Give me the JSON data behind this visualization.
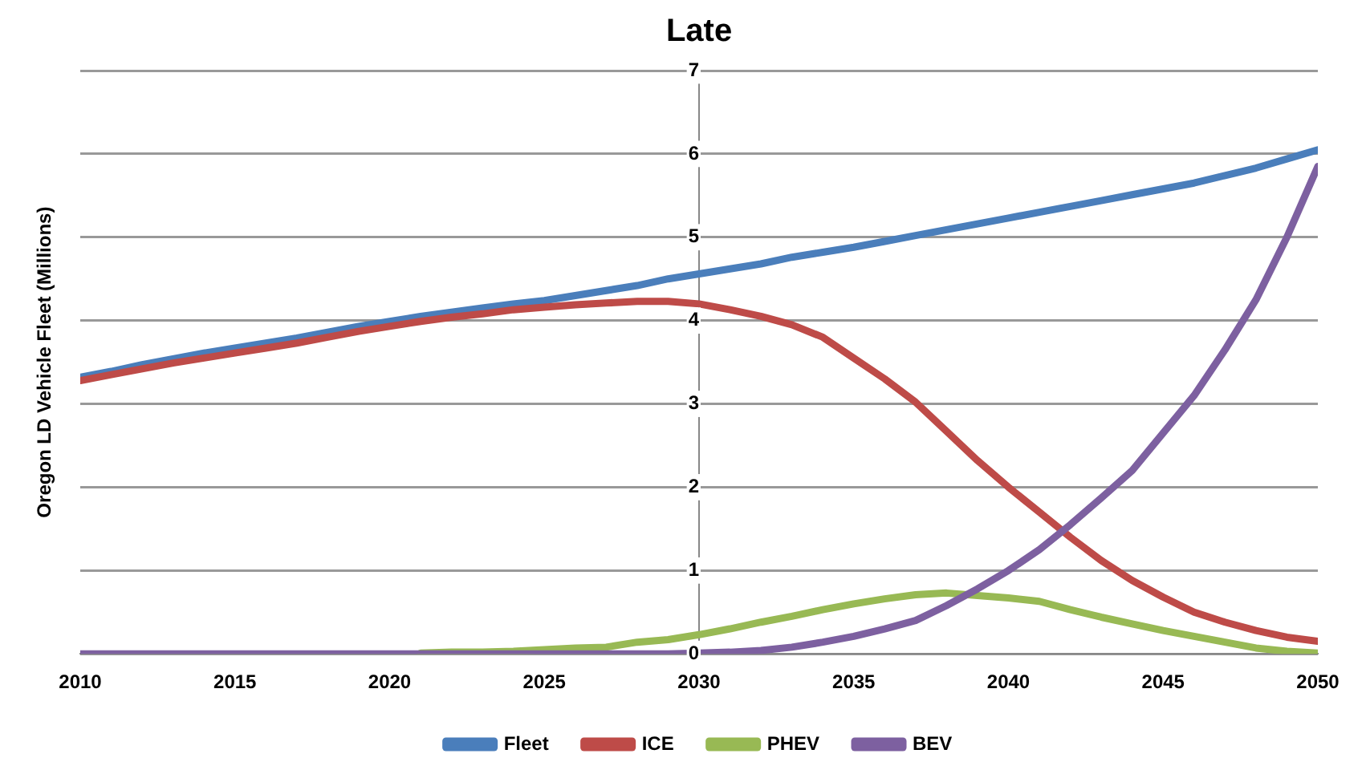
{
  "chart_data": {
    "type": "line",
    "title": "Late",
    "ylabel": "Oregon LD Vehicle Fleet (Millions)",
    "x": [
      2010,
      2011,
      2012,
      2013,
      2014,
      2015,
      2016,
      2017,
      2018,
      2019,
      2020,
      2021,
      2022,
      2023,
      2024,
      2025,
      2026,
      2027,
      2028,
      2029,
      2030,
      2031,
      2032,
      2033,
      2034,
      2035,
      2036,
      2037,
      2038,
      2039,
      2040,
      2041,
      2042,
      2043,
      2044,
      2045,
      2046,
      2047,
      2048,
      2049,
      2050
    ],
    "xlim": [
      2010,
      2050
    ],
    "xticks": [
      2010,
      2015,
      2020,
      2025,
      2030,
      2035,
      2040,
      2045,
      2050
    ],
    "ylim": [
      0,
      7
    ],
    "yticks": [
      0,
      1,
      2,
      3,
      4,
      5,
      6,
      7
    ],
    "grid": "y",
    "legend": "bottom",
    "marker": "none",
    "line_style": "solid",
    "series": [
      {
        "name": "Fleet",
        "color": "#4a7ebb",
        "values": [
          3.32,
          3.39,
          3.47,
          3.54,
          3.61,
          3.67,
          3.73,
          3.79,
          3.86,
          3.93,
          3.99,
          4.05,
          4.1,
          4.15,
          4.2,
          4.24,
          4.3,
          4.36,
          4.42,
          4.5,
          4.56,
          4.62,
          4.68,
          4.76,
          4.82,
          4.88,
          4.95,
          5.02,
          5.09,
          5.16,
          5.23,
          5.3,
          5.37,
          5.44,
          5.51,
          5.58,
          5.65,
          5.74,
          5.83,
          5.94,
          6.05
        ]
      },
      {
        "name": "ICE",
        "color": "#be4b48",
        "values": [
          3.28,
          3.35,
          3.42,
          3.49,
          3.55,
          3.61,
          3.67,
          3.73,
          3.8,
          3.87,
          3.93,
          3.99,
          4.04,
          4.08,
          4.13,
          4.16,
          4.19,
          4.21,
          4.23,
          4.23,
          4.2,
          4.13,
          4.05,
          3.95,
          3.8,
          3.55,
          3.3,
          3.02,
          2.67,
          2.32,
          2.0,
          1.7,
          1.4,
          1.12,
          0.88,
          0.68,
          0.5,
          0.38,
          0.28,
          0.2,
          0.15
        ]
      },
      {
        "name": "PHEV",
        "color": "#98b954",
        "values": [
          null,
          null,
          null,
          null,
          null,
          null,
          null,
          null,
          null,
          null,
          null,
          0.01,
          0.02,
          0.02,
          0.03,
          0.05,
          0.07,
          0.08,
          0.14,
          0.17,
          0.23,
          0.3,
          0.38,
          0.45,
          0.53,
          0.6,
          0.66,
          0.71,
          0.73,
          0.7,
          0.67,
          0.63,
          0.53,
          0.44,
          0.36,
          0.28,
          0.21,
          0.14,
          0.07,
          0.03,
          0.01
        ]
      },
      {
        "name": "BEV",
        "color": "#7d60a0",
        "values": [
          0,
          0,
          0,
          0,
          0,
          0,
          0,
          0,
          0,
          0,
          0,
          0,
          0,
          0,
          0,
          0,
          0,
          0,
          0,
          0,
          0.01,
          0.02,
          0.04,
          0.08,
          0.14,
          0.21,
          0.3,
          0.4,
          0.58,
          0.78,
          1.0,
          1.25,
          1.55,
          1.87,
          2.2,
          2.65,
          3.1,
          3.65,
          4.25,
          5.0,
          5.85
        ]
      }
    ]
  }
}
